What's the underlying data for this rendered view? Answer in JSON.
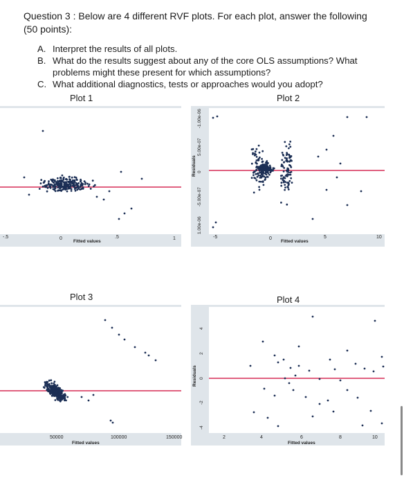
{
  "question": {
    "title": "Question 3 : Below are 4 different RVF plots. For each plot, answer the following (50 points):",
    "items": [
      {
        "label": "A.",
        "text": "Interpret the results of all plots."
      },
      {
        "label": "B.",
        "text": "What do the results suggest about any of the core OLS assumptions? What problems might these present for which assumptions?"
      },
      {
        "label": "C.",
        "text": "What additional diagnostics, tests or approaches would you adopt?"
      }
    ]
  },
  "plots": {
    "p1": {
      "title": "Plot 1",
      "xlabel": "Fitted values",
      "xticks": [
        "-.5",
        "0",
        ".5",
        "1"
      ]
    },
    "p2": {
      "title": "Plot 2",
      "xlabel": "Fitted values",
      "ylabel": "Residuals",
      "xticks": [
        "-5",
        "0",
        "5",
        "10"
      ],
      "yticks": [
        "1.00e-06",
        "5.00e-07",
        "0",
        "-5.00e-07",
        "-1.00e-06"
      ]
    },
    "p3": {
      "title": "Plot 3",
      "xlabel": "Fitted values",
      "xticks": [
        "50000",
        "100000",
        "150000"
      ]
    },
    "p4": {
      "title": "Plot 4",
      "xlabel": "Fitted values",
      "ylabel": "Residuals",
      "xticks": [
        "2",
        "4",
        "6",
        "8",
        "10"
      ],
      "yticks": [
        "4",
        "2",
        "0",
        "-2",
        "-4"
      ]
    }
  },
  "colors": {
    "points": "#1c2f55",
    "zero_line": "#e0607f",
    "panel_bg": "#dfe5ea"
  }
}
